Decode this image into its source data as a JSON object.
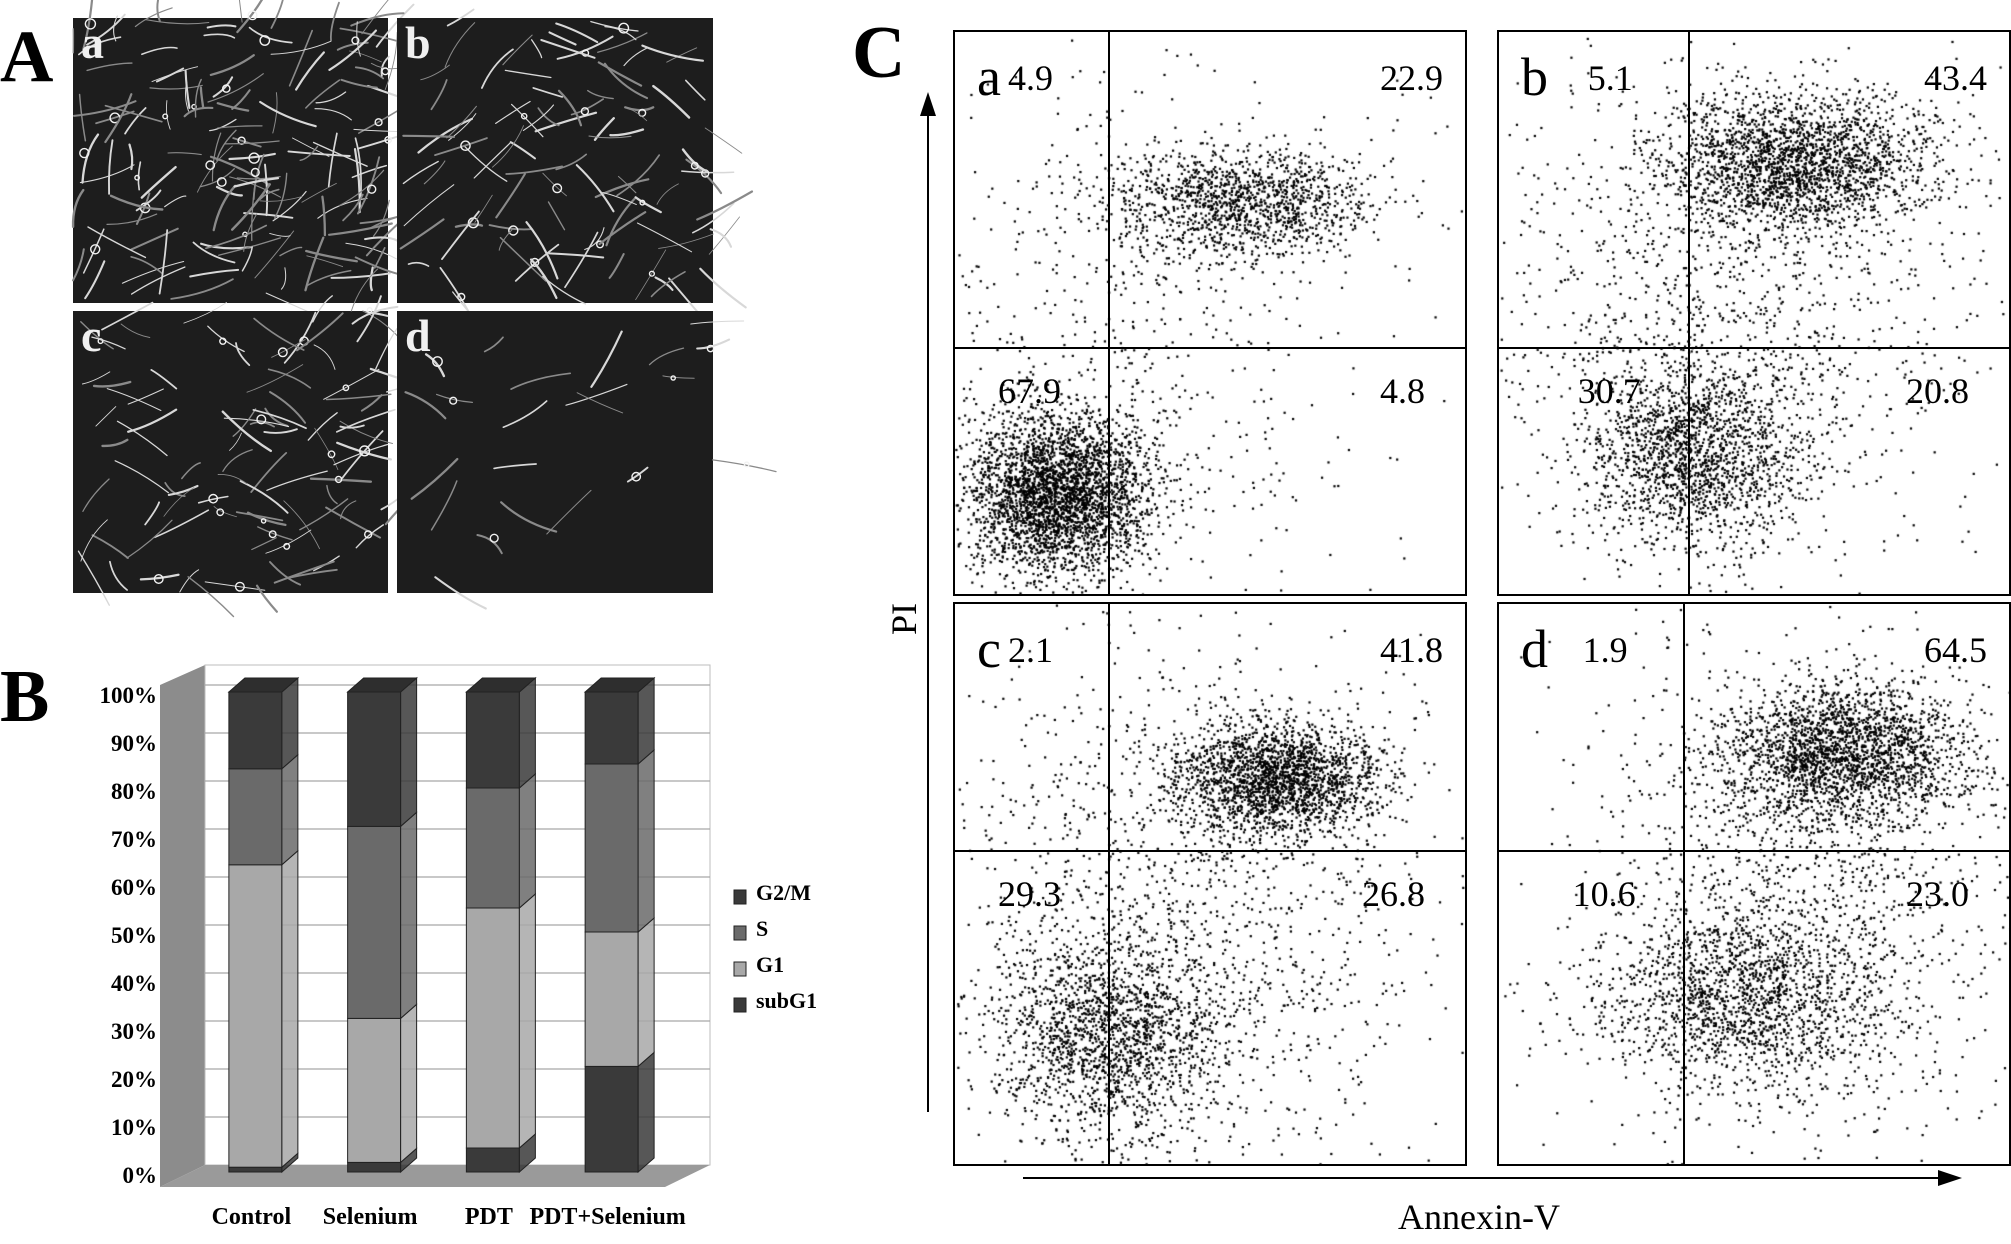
{
  "panels": {
    "A": {
      "letter": "A",
      "images": [
        {
          "label": "a"
        },
        {
          "label": "b"
        },
        {
          "label": "c"
        },
        {
          "label": "d"
        }
      ]
    },
    "B": {
      "letter": "B"
    },
    "C": {
      "letter": "C"
    }
  },
  "chart_data": [
    {
      "type": "bar",
      "stacked": true,
      "style": "3d",
      "categories": [
        "Control",
        "Selenium",
        "PDT",
        "PDT+Selenium"
      ],
      "series": [
        {
          "name": "subG1",
          "values": [
            1,
            2,
            5,
            22
          ],
          "color": "#3a3a3a"
        },
        {
          "name": "G1",
          "values": [
            63,
            30,
            50,
            28
          ],
          "color": "#a8a8a8"
        },
        {
          "name": "S",
          "values": [
            20,
            40,
            25,
            35
          ],
          "color": "#6a6a6a"
        },
        {
          "name": "G2/M",
          "values": [
            16,
            28,
            20,
            15
          ],
          "color": "#3a3a3a"
        }
      ],
      "yticks": [
        "0%",
        "10%",
        "20%",
        "30%",
        "40%",
        "50%",
        "60%",
        "70%",
        "80%",
        "90%",
        "100%"
      ],
      "ylim": [
        0,
        100
      ],
      "legend": [
        "G2/M",
        "S",
        "G1",
        "subG1"
      ],
      "legend_position": "right",
      "grid": true
    },
    {
      "type": "scatter",
      "xlabel": "Annexin-V",
      "ylabel": "PI",
      "panels": [
        {
          "label": "a",
          "quadrants": {
            "upper_left": "4.9",
            "upper_right": "22.9",
            "lower_left": "67.9",
            "lower_right": "4.8"
          }
        },
        {
          "label": "b",
          "quadrants": {
            "upper_left": "5.1",
            "upper_right": "43.4",
            "lower_left": "30.7",
            "lower_right": "20.8"
          }
        },
        {
          "label": "c",
          "quadrants": {
            "upper_left": "2.1",
            "upper_right": "41.8",
            "lower_left": "29.3",
            "lower_right": "26.8"
          }
        },
        {
          "label": "d",
          "quadrants": {
            "upper_left": "1.9",
            "upper_right": "64.5",
            "lower_left": "10.6",
            "lower_right": "23.0"
          }
        }
      ]
    }
  ]
}
